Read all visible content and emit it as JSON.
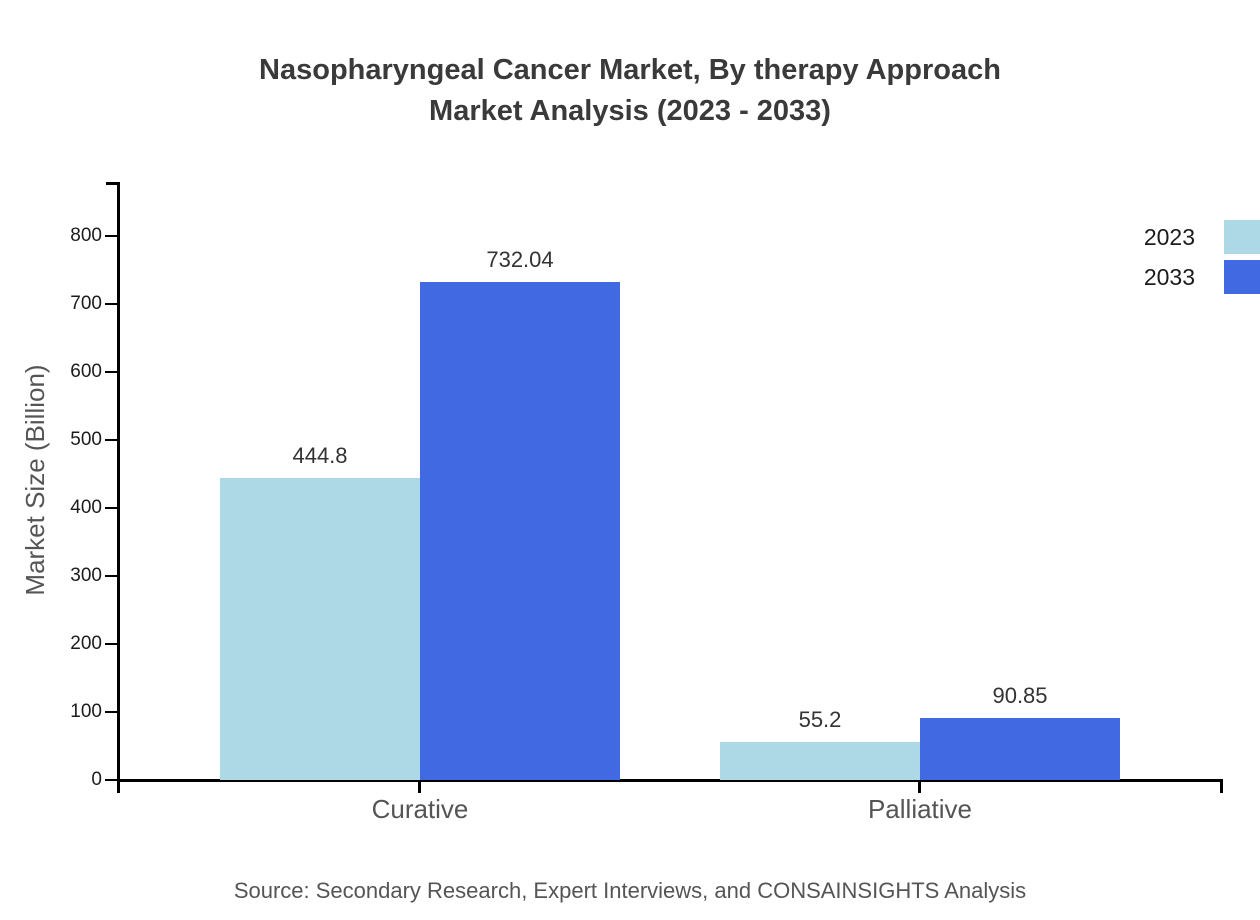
{
  "title": {
    "line1": "Nasopharyngeal Cancer Market, By therapy Approach",
    "line2": "Market Analysis (2023 - 2033)"
  },
  "source": "Source: Secondary Research, Expert Interviews, and CONSAINSIGHTS Analysis",
  "colors": {
    "series_2023": "#ADD8E6",
    "series_2033": "#4169E1",
    "axis": "#000000",
    "title_text": "#3a3a3a",
    "value_label_text": "#333333",
    "muted_text": "#555555"
  },
  "chart_data": {
    "type": "bar",
    "categories": [
      "Curative",
      "Palliative"
    ],
    "series": [
      {
        "name": "2023",
        "color": "#ADD8E6",
        "values": [
          444.8,
          55.2
        ]
      },
      {
        "name": "2033",
        "color": "#4169E1",
        "values": [
          732.04,
          90.85
        ]
      }
    ],
    "title": "Nasopharyngeal Cancer Market, By therapy Approach Market Analysis (2023 - 2033)",
    "xlabel": "",
    "ylabel": "Market Size (Billion)",
    "ylim": [
      0,
      800
    ],
    "yticks": [
      0,
      100,
      200,
      300,
      400,
      500,
      600,
      700,
      800
    ],
    "grid": false,
    "legend_position": "top-right",
    "value_labels": true
  },
  "legend": {
    "items": [
      {
        "label": "2023",
        "color": "#ADD8E6"
      },
      {
        "label": "2033",
        "color": "#4169E1"
      }
    ]
  }
}
